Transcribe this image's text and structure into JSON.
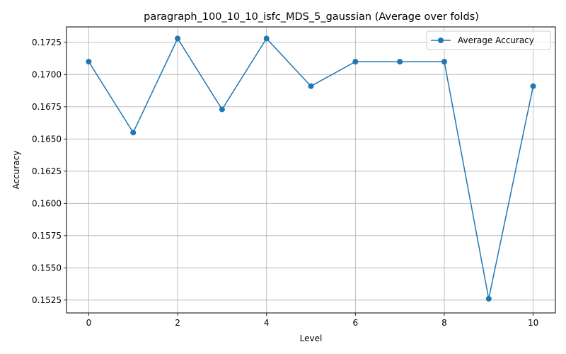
{
  "chart_data": {
    "type": "line",
    "title": "paragraph_100_10_10_isfc_MDS_5_gaussian (Average over folds)",
    "xlabel": "Level",
    "ylabel": "Accuracy",
    "xlim": [
      -0.5,
      10.5
    ],
    "ylim": [
      0.1515,
      0.1737
    ],
    "xticks": [
      0,
      2,
      4,
      6,
      8,
      10
    ],
    "xtick_labels": [
      "0",
      "2",
      "4",
      "6",
      "8",
      "10"
    ],
    "yticks": [
      0.1525,
      0.155,
      0.1575,
      0.16,
      0.1625,
      0.165,
      0.1675,
      0.17,
      0.1725
    ],
    "ytick_labels": [
      "0.1525",
      "0.1550",
      "0.1575",
      "0.1600",
      "0.1625",
      "0.1650",
      "0.1675",
      "0.1700",
      "0.1725"
    ],
    "grid": true,
    "legend_position": "top-right",
    "series": [
      {
        "name": "Average Accuracy",
        "color": "#1f77b4",
        "marker": "circle",
        "x": [
          0,
          1,
          2,
          3,
          4,
          5,
          6,
          7,
          8,
          9,
          10
        ],
        "values": [
          0.171,
          0.1655,
          0.1728,
          0.1673,
          0.1728,
          0.1691,
          0.171,
          0.171,
          0.171,
          0.1526,
          0.1691
        ]
      }
    ]
  }
}
